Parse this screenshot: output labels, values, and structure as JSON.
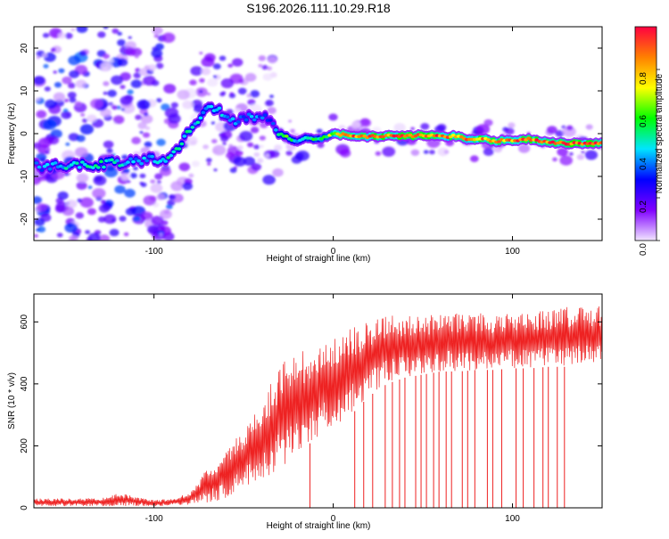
{
  "title": "S196.2026.111.10.29.R18",
  "chart_data": [
    {
      "type": "heatmap",
      "xlabel": "Height of straight line (km)",
      "ylabel": "Frequency (Hz)",
      "xlim": [
        -167,
        150
      ],
      "ylim": [
        -25,
        25
      ],
      "xticks": [
        -100,
        0,
        100
      ],
      "yticks": [
        -20,
        -10,
        0,
        10,
        20
      ],
      "colorbar": {
        "label": "Normalized spectral amplitude",
        "range": [
          0,
          1
        ],
        "ticks": [
          "0.0",
          "0.2",
          "0.4",
          "0.6",
          "0.8"
        ],
        "tick_values": [
          0.0,
          0.2,
          0.4,
          0.6,
          0.8
        ],
        "colormap": [
          "#f2e6ff",
          "#8000ff",
          "#0000ff",
          "#00e5ff",
          "#00ff00",
          "#ffff00",
          "#ff8000",
          "#ff0040"
        ]
      },
      "ridge": {
        "x": [
          -167,
          -160,
          -150,
          -140,
          -130,
          -120,
          -110,
          -100,
          -95,
          -90,
          -85,
          -80,
          -75,
          -70,
          -65,
          -60,
          -55,
          -50,
          -45,
          -40,
          -35,
          -30,
          -25,
          -20,
          -15,
          -10,
          -5,
          0,
          10,
          20,
          30,
          40,
          50,
          60,
          70,
          75,
          80,
          85,
          90,
          95,
          100,
          110,
          120,
          130,
          140,
          150
        ],
        "freq": [
          -7.5,
          -7.8,
          -7.5,
          -7.3,
          -7,
          -6.8,
          -6.5,
          -6,
          -6,
          -5.5,
          -2,
          1,
          3.5,
          5.5,
          6,
          4.5,
          3,
          4,
          3.5,
          4,
          4,
          0,
          -1,
          -2,
          -0.8,
          -1.5,
          -0.8,
          0,
          -0.5,
          -0.7,
          -0.5,
          -0.6,
          -0.4,
          -0.7,
          -0.5,
          -1.5,
          -1.5,
          -1.2,
          -2,
          -1.5,
          -1.5,
          -1.3,
          -2,
          -2.3,
          -2.3,
          -2.3
        ],
        "amplitude": [
          0.35,
          0.4,
          0.45,
          0.45,
          0.5,
          0.45,
          0.4,
          0.4,
          0.45,
          0.5,
          0.5,
          0.5,
          0.45,
          0.4,
          0.45,
          0.4,
          0.4,
          0.35,
          0.4,
          0.35,
          0.3,
          0.5,
          0.6,
          0.45,
          0.5,
          0.55,
          0.6,
          0.7,
          0.9,
          0.9,
          0.92,
          0.92,
          0.9,
          0.9,
          0.88,
          0.9,
          0.85,
          0.88,
          0.85,
          0.88,
          0.9,
          0.92,
          0.95,
          0.95,
          0.95,
          0.95
        ]
      }
    },
    {
      "type": "line",
      "xlabel": "Height of straight line (km)",
      "ylabel": "SNR (10 * v/v)",
      "xlim": [
        -167,
        150
      ],
      "ylim": [
        0,
        690
      ],
      "xticks": [
        -100,
        0,
        100
      ],
      "yticks": [
        0,
        200,
        400,
        600
      ],
      "series": [
        {
          "name": "SNR",
          "color": "#ee2222",
          "envelope": {
            "x": [
              -167,
              -140,
              -125,
              -120,
              -100,
              -90,
              -80,
              -70,
              -60,
              -50,
              -40,
              -30,
              -20,
              -10,
              0,
              10,
              20,
              30,
              40,
              50,
              60,
              70,
              80,
              90,
              100,
              110,
              120,
              130,
              140,
              150
            ],
            "y_low": [
              5,
              5,
              5,
              5,
              5,
              8,
              10,
              15,
              30,
              60,
              90,
              120,
              180,
              220,
              260,
              300,
              360,
              400,
              420,
              430,
              440,
              440,
              445,
              445,
              450,
              450,
              455,
              455,
              460,
              460
            ],
            "y_high": [
              30,
              30,
              35,
              50,
              25,
              30,
              50,
              130,
              180,
              260,
              330,
              470,
              500,
              520,
              560,
              580,
              600,
              620,
              620,
              620,
              630,
              630,
              630,
              620,
              630,
              630,
              640,
              650,
              650,
              650
            ]
          },
          "dropouts_x": [
            -13,
            12,
            17,
            22,
            29,
            33,
            37,
            40,
            46,
            49,
            52,
            56,
            59,
            63,
            66,
            72,
            75,
            79,
            86,
            89,
            94,
            102,
            106,
            112,
            117,
            120,
            125,
            129
          ]
        }
      ]
    }
  ]
}
